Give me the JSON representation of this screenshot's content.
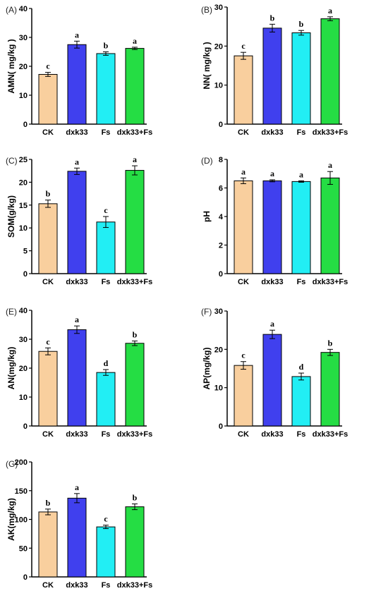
{
  "chart_data": [
    {
      "panel": "(A)",
      "type": "bar",
      "ylabel": "AMN( mg/kg )",
      "ylim": [
        0,
        40
      ],
      "yticks": [
        0,
        10,
        20,
        30,
        40
      ],
      "categories": [
        "CK",
        "dxk33",
        "Fs",
        "dxk33+Fs"
      ],
      "values": [
        17.2,
        27.5,
        24.4,
        26.2
      ],
      "errors": [
        0.7,
        1.2,
        0.6,
        0.4
      ],
      "letters": [
        "c",
        "a",
        "b",
        "a"
      ]
    },
    {
      "panel": "(B)",
      "type": "bar",
      "ylabel": "NN( mg/kg )",
      "ylim": [
        0,
        30
      ],
      "yticks": [
        0,
        10,
        20,
        30
      ],
      "categories": [
        "CK",
        "dxk33",
        "Fs",
        "dxk33+Fs"
      ],
      "values": [
        17.5,
        24.6,
        23.4,
        27.0
      ],
      "errors": [
        0.9,
        1.0,
        0.6,
        0.5
      ],
      "letters": [
        "c",
        "b",
        "b",
        "a"
      ]
    },
    {
      "panel": "(C)",
      "type": "bar",
      "ylabel": "SOM(g/kg)",
      "ylim": [
        0,
        25
      ],
      "yticks": [
        0,
        5,
        10,
        15,
        20,
        25
      ],
      "categories": [
        "CK",
        "dxk33",
        "Fs",
        "dxk33+Fs"
      ],
      "values": [
        15.3,
        22.4,
        11.3,
        22.6
      ],
      "errors": [
        0.8,
        0.7,
        1.2,
        1.0
      ],
      "letters": [
        "b",
        "a",
        "c",
        "a"
      ]
    },
    {
      "panel": "(D)",
      "type": "bar",
      "ylabel": "pH",
      "ylim": [
        0,
        8
      ],
      "yticks": [
        0,
        2,
        4,
        6,
        8
      ],
      "categories": [
        "CK",
        "dxk33",
        "Fs",
        "dxk33+Fs"
      ],
      "values": [
        6.5,
        6.5,
        6.45,
        6.7
      ],
      "errors": [
        0.2,
        0.07,
        0.05,
        0.45
      ],
      "letters": [
        "a",
        "a",
        "a",
        "a"
      ]
    },
    {
      "panel": "(E)",
      "type": "bar",
      "ylabel": "AN(mg/kg)",
      "ylim": [
        0,
        40
      ],
      "yticks": [
        0,
        10,
        20,
        30,
        40
      ],
      "categories": [
        "CK",
        "dxk33",
        "Fs",
        "dxk33+Fs"
      ],
      "values": [
        25.8,
        33.3,
        18.5,
        28.6
      ],
      "errors": [
        1.2,
        1.3,
        1.0,
        0.8
      ],
      "letters": [
        "c",
        "a",
        "d",
        "b"
      ]
    },
    {
      "panel": "(F)",
      "type": "bar",
      "ylabel": "AP(mg/kg)",
      "ylim": [
        0,
        30
      ],
      "yticks": [
        0,
        10,
        20,
        30
      ],
      "categories": [
        "CK",
        "dxk33",
        "Fs",
        "dxk33+Fs"
      ],
      "values": [
        15.8,
        23.9,
        12.9,
        19.2
      ],
      "errors": [
        1.0,
        1.1,
        0.9,
        0.8
      ],
      "letters": [
        "c",
        "a",
        "d",
        "b"
      ]
    },
    {
      "panel": "(G)",
      "type": "bar",
      "ylabel": "AK(mg/kg)",
      "ylim": [
        0,
        200
      ],
      "yticks": [
        0,
        50,
        100,
        150,
        200
      ],
      "categories": [
        "CK",
        "dxk33",
        "Fs",
        "dxk33+Fs"
      ],
      "values": [
        113,
        137,
        87,
        122
      ],
      "errors": [
        5,
        8,
        3,
        5
      ],
      "letters": [
        "b",
        "a",
        "c",
        "b"
      ]
    }
  ],
  "colors": {
    "CK": "#f9cf9e",
    "dxk33": "#4040ee",
    "Fs": "#22eef4",
    "dxk33+Fs": "#25dd44"
  }
}
